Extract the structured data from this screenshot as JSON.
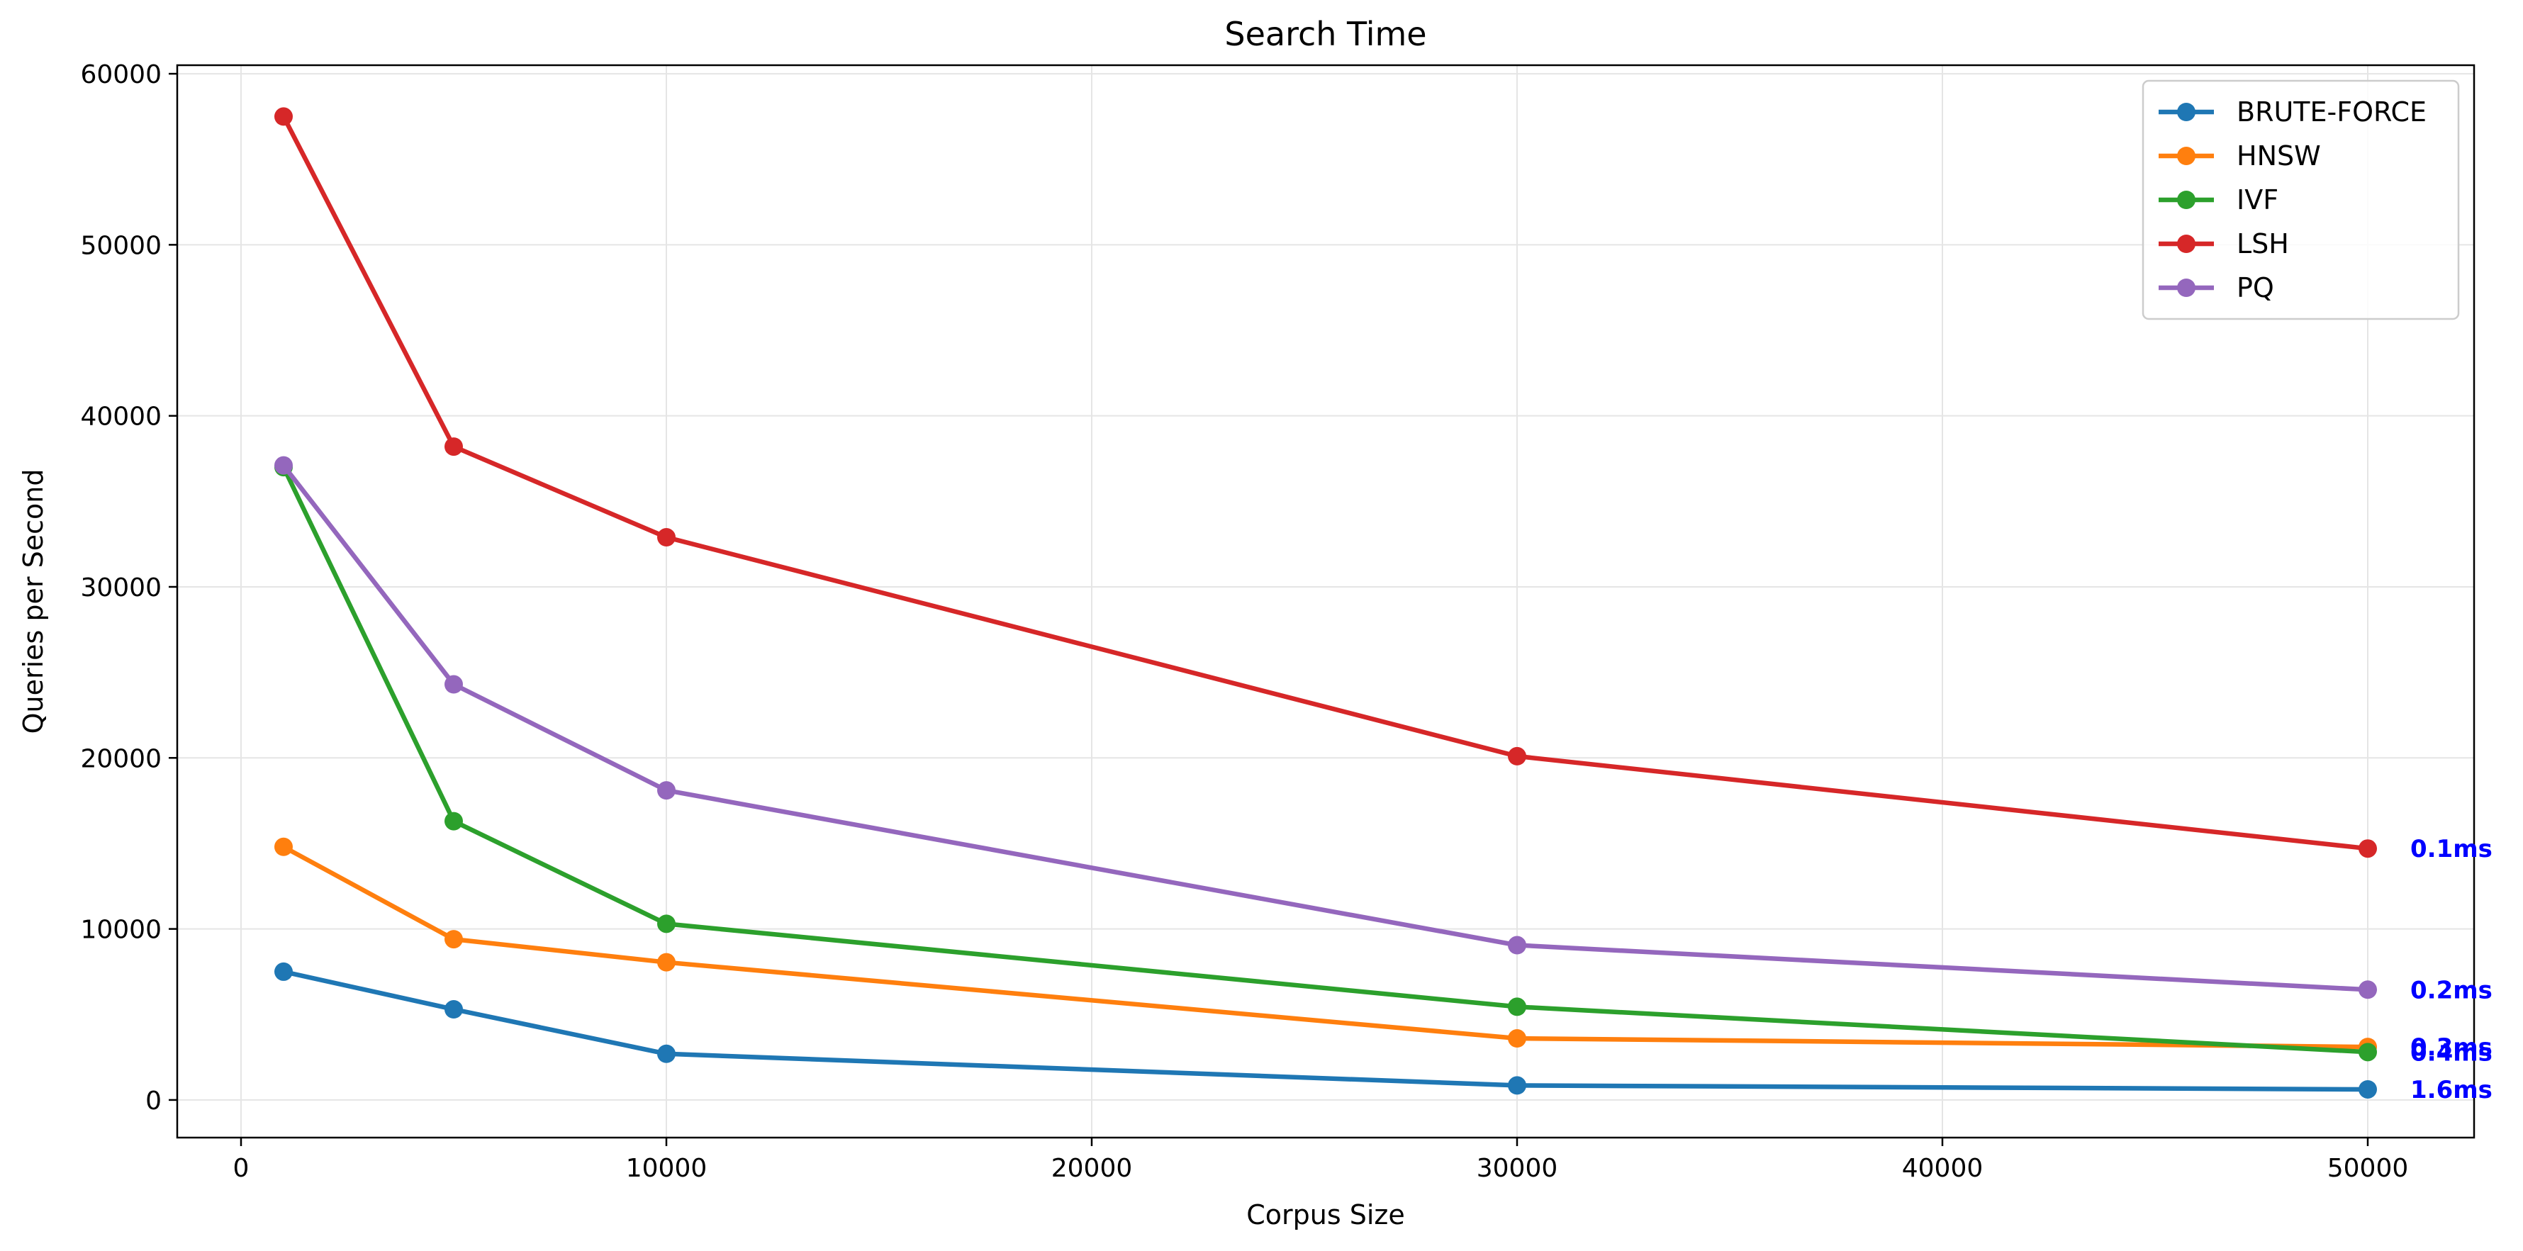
{
  "chart_data": {
    "type": "line",
    "title": "Search Time",
    "xlabel": "Corpus Size",
    "ylabel": "Queries per Second",
    "xlim": [
      -1500,
      52500
    ],
    "ylim": [
      -2200,
      60500
    ],
    "xticks": [
      0,
      10000,
      20000,
      30000,
      40000,
      50000
    ],
    "yticks": [
      0,
      10000,
      20000,
      30000,
      40000,
      50000,
      60000
    ],
    "grid": true,
    "legend_position": "top-right",
    "x": [
      1000,
      5000,
      10000,
      30000,
      50000
    ],
    "series": [
      {
        "name": "BRUTE-FORCE",
        "color": "#1f77b4",
        "values": [
          7500,
          5300,
          2700,
          850,
          620
        ]
      },
      {
        "name": "HNSW",
        "color": "#ff7f0e",
        "values": [
          14800,
          9400,
          8050,
          3600,
          3100
        ]
      },
      {
        "name": "IVF",
        "color": "#2ca02c",
        "values": [
          37000,
          16300,
          10300,
          5450,
          2800
        ]
      },
      {
        "name": "LSH",
        "color": "#d62728",
        "values": [
          57500,
          38200,
          32900,
          20100,
          14700
        ]
      },
      {
        "name": "PQ",
        "color": "#9467bd",
        "values": [
          37100,
          24300,
          18100,
          9050,
          6450
        ]
      }
    ],
    "annotations": [
      {
        "text": "0.1ms",
        "x": 51000,
        "y": 14700
      },
      {
        "text": "0.2ms",
        "x": 51000,
        "y": 6450
      },
      {
        "text": "0.3ms",
        "x": 51000,
        "y": 3100
      },
      {
        "text": "0.4ms",
        "x": 51000,
        "y": 2800
      },
      {
        "text": "1.6ms",
        "x": 51000,
        "y": 620
      }
    ],
    "annotation_color": "#0000ff"
  }
}
